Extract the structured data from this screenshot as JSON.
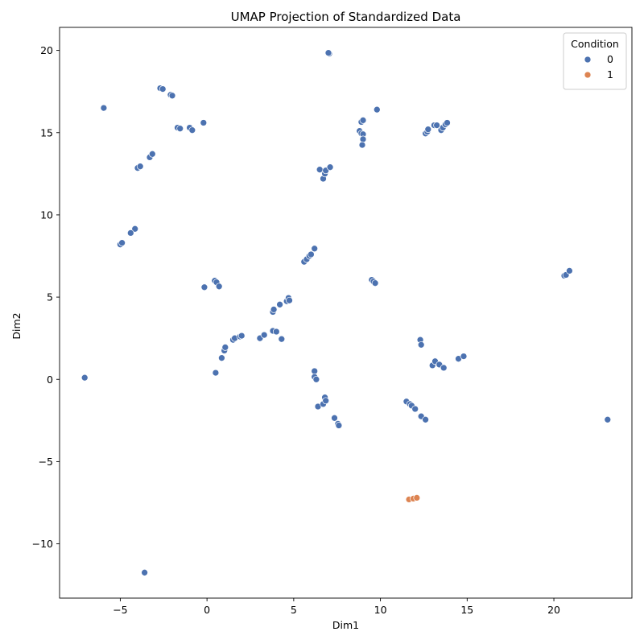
{
  "chart_data": {
    "type": "scatter",
    "title": "UMAP Projection of Standardized Data",
    "xlabel": "Dim1",
    "ylabel": "Dim2",
    "xlim": [
      -8.5,
      24.5
    ],
    "ylim": [
      -13.3,
      21.4
    ],
    "xticks": [
      -5,
      0,
      5,
      10,
      15,
      20
    ],
    "yticks": [
      -10,
      -5,
      0,
      5,
      10,
      15,
      20
    ],
    "xtick_labels": [
      "−5",
      "0",
      "5",
      "10",
      "15",
      "20"
    ],
    "ytick_labels": [
      "−10",
      "−5",
      "0",
      "5",
      "10",
      "15",
      "20"
    ],
    "grid": false,
    "legend": {
      "title": "Condition",
      "placement": "top-right",
      "entries": [
        "0",
        "1"
      ]
    },
    "colors": {
      "0": "#4c72b0",
      "1": "#dd8452"
    },
    "series": [
      {
        "name": "0",
        "points": [
          [
            7.05,
            19.8
          ],
          [
            7.0,
            19.85
          ],
          [
            -5.95,
            16.5
          ],
          [
            -2.7,
            17.7
          ],
          [
            -2.55,
            17.65
          ],
          [
            -2.1,
            17.3
          ],
          [
            -2.0,
            17.25
          ],
          [
            -1.7,
            15.3
          ],
          [
            -1.55,
            15.25
          ],
          [
            -1.0,
            15.3
          ],
          [
            -0.85,
            15.15
          ],
          [
            -0.2,
            15.6
          ],
          [
            -3.3,
            13.5
          ],
          [
            -3.15,
            13.7
          ],
          [
            -4.0,
            12.85
          ],
          [
            -3.85,
            12.95
          ],
          [
            -4.15,
            9.15
          ],
          [
            -4.4,
            8.9
          ],
          [
            -5.0,
            8.2
          ],
          [
            -4.9,
            8.3
          ],
          [
            -0.15,
            5.6
          ],
          [
            0.45,
            6.0
          ],
          [
            0.55,
            5.9
          ],
          [
            0.7,
            5.65
          ],
          [
            -7.05,
            0.1
          ],
          [
            -3.6,
            -11.75
          ],
          [
            0.5,
            0.4
          ],
          [
            0.85,
            1.3
          ],
          [
            1.0,
            1.75
          ],
          [
            1.05,
            1.95
          ],
          [
            1.5,
            2.4
          ],
          [
            1.6,
            2.5
          ],
          [
            1.9,
            2.6
          ],
          [
            2.0,
            2.65
          ],
          [
            3.05,
            2.5
          ],
          [
            3.3,
            2.7
          ],
          [
            3.8,
            2.95
          ],
          [
            4.0,
            2.9
          ],
          [
            4.3,
            2.45
          ],
          [
            3.8,
            4.1
          ],
          [
            3.85,
            4.25
          ],
          [
            4.2,
            4.55
          ],
          [
            4.6,
            4.75
          ],
          [
            4.7,
            4.95
          ],
          [
            4.75,
            4.8
          ],
          [
            5.6,
            7.15
          ],
          [
            5.75,
            7.3
          ],
          [
            5.9,
            7.5
          ],
          [
            6.0,
            7.6
          ],
          [
            6.2,
            7.95
          ],
          [
            6.2,
            0.5
          ],
          [
            6.2,
            0.15
          ],
          [
            6.3,
            0.0
          ],
          [
            6.4,
            -1.65
          ],
          [
            6.7,
            -1.5
          ],
          [
            6.8,
            -1.1
          ],
          [
            6.85,
            -1.3
          ],
          [
            7.35,
            -2.35
          ],
          [
            7.55,
            -2.7
          ],
          [
            7.6,
            -2.8
          ],
          [
            6.5,
            12.75
          ],
          [
            6.7,
            12.2
          ],
          [
            6.8,
            12.5
          ],
          [
            6.85,
            12.7
          ],
          [
            7.1,
            12.9
          ],
          [
            8.9,
            15.65
          ],
          [
            9.0,
            15.75
          ],
          [
            8.8,
            15.1
          ],
          [
            8.9,
            14.95
          ],
          [
            9.0,
            14.9
          ],
          [
            9.0,
            14.6
          ],
          [
            8.95,
            14.25
          ],
          [
            9.8,
            16.4
          ],
          [
            9.5,
            6.05
          ],
          [
            9.6,
            5.95
          ],
          [
            9.7,
            5.85
          ],
          [
            12.6,
            14.95
          ],
          [
            12.7,
            15.05
          ],
          [
            12.75,
            15.2
          ],
          [
            13.1,
            15.45
          ],
          [
            13.25,
            15.45
          ],
          [
            13.5,
            15.15
          ],
          [
            13.6,
            15.3
          ],
          [
            13.75,
            15.5
          ],
          [
            13.85,
            15.6
          ],
          [
            12.3,
            2.4
          ],
          [
            12.35,
            2.1
          ],
          [
            13.0,
            0.85
          ],
          [
            13.15,
            1.1
          ],
          [
            13.4,
            0.9
          ],
          [
            13.65,
            0.7
          ],
          [
            14.5,
            1.25
          ],
          [
            14.8,
            1.4
          ],
          [
            11.5,
            -1.35
          ],
          [
            11.7,
            -1.5
          ],
          [
            11.8,
            -1.6
          ],
          [
            12.0,
            -1.8
          ],
          [
            12.35,
            -2.25
          ],
          [
            12.6,
            -2.45
          ],
          [
            20.6,
            6.3
          ],
          [
            20.7,
            6.35
          ],
          [
            20.9,
            6.6
          ],
          [
            23.1,
            -2.45
          ]
        ]
      },
      {
        "name": "1",
        "points": [
          [
            11.65,
            -7.3
          ],
          [
            11.9,
            -7.25
          ],
          [
            12.1,
            -7.2
          ]
        ]
      }
    ]
  }
}
